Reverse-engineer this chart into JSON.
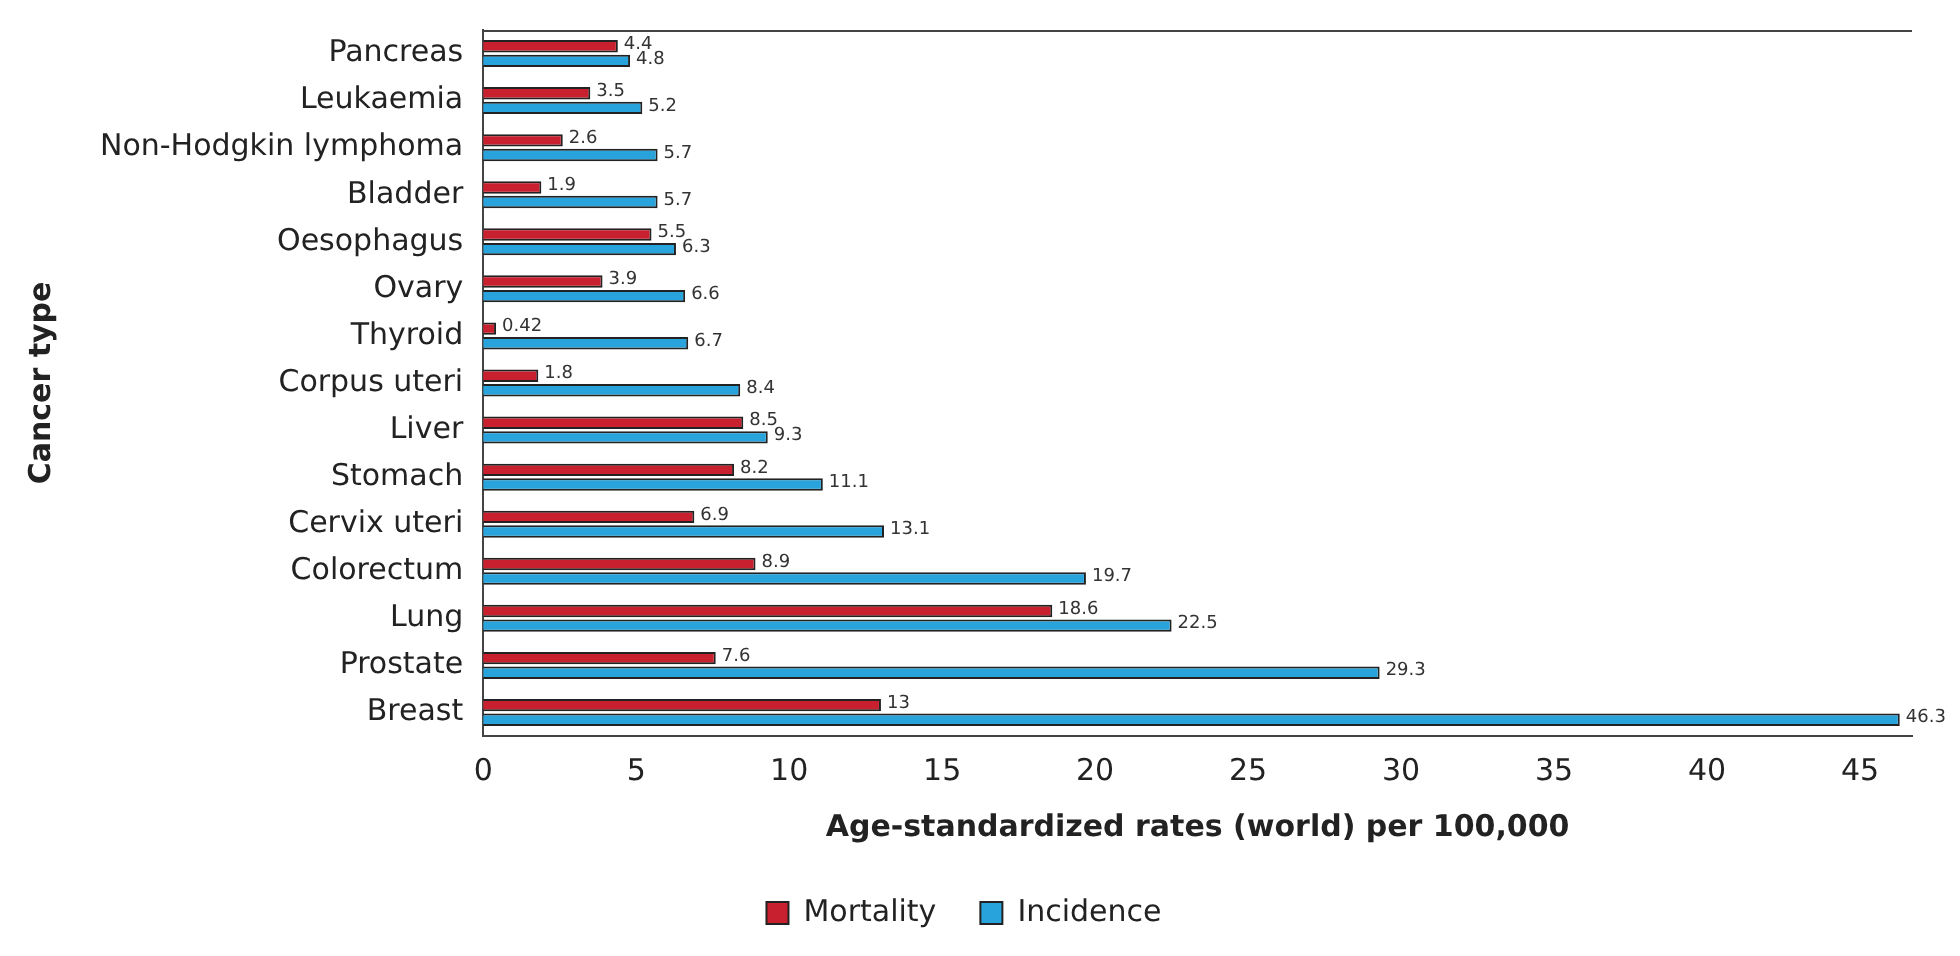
{
  "chart_data": {
    "type": "bar",
    "orientation": "horizontal",
    "xlabel": "Age-standardized rates (world) per 100,000",
    "ylabel": "Cancer type",
    "categories": [
      "Pancreas",
      "Leukaemia",
      "Non-Hodgkin lymphoma",
      "Bladder",
      "Oesophagus",
      "Ovary",
      "Thyroid",
      "Corpus uteri",
      "Liver",
      "Stomach",
      "Cervix uteri",
      "Colorectum",
      "Lung",
      "Prostate",
      "Breast"
    ],
    "series": [
      {
        "name": "Mortality",
        "color": "#c8202f",
        "values": [
          4.4,
          3.5,
          2.6,
          1.9,
          5.5,
          3.9,
          0.42,
          1.8,
          8.5,
          8.2,
          6.9,
          8.9,
          18.6,
          7.6,
          13
        ]
      },
      {
        "name": "Incidence",
        "color": "#29a3dc",
        "values": [
          4.8,
          5.2,
          5.7,
          5.7,
          6.3,
          6.6,
          6.7,
          8.4,
          9.3,
          11.1,
          13.1,
          19.7,
          22.5,
          29.3,
          46.3
        ]
      }
    ],
    "xlim": [
      0,
      46.7
    ],
    "xticks": [
      0,
      5,
      10,
      15,
      20,
      25,
      30,
      35,
      40,
      45
    ],
    "grid": false,
    "legend": "bottom",
    "data_labels": true
  }
}
